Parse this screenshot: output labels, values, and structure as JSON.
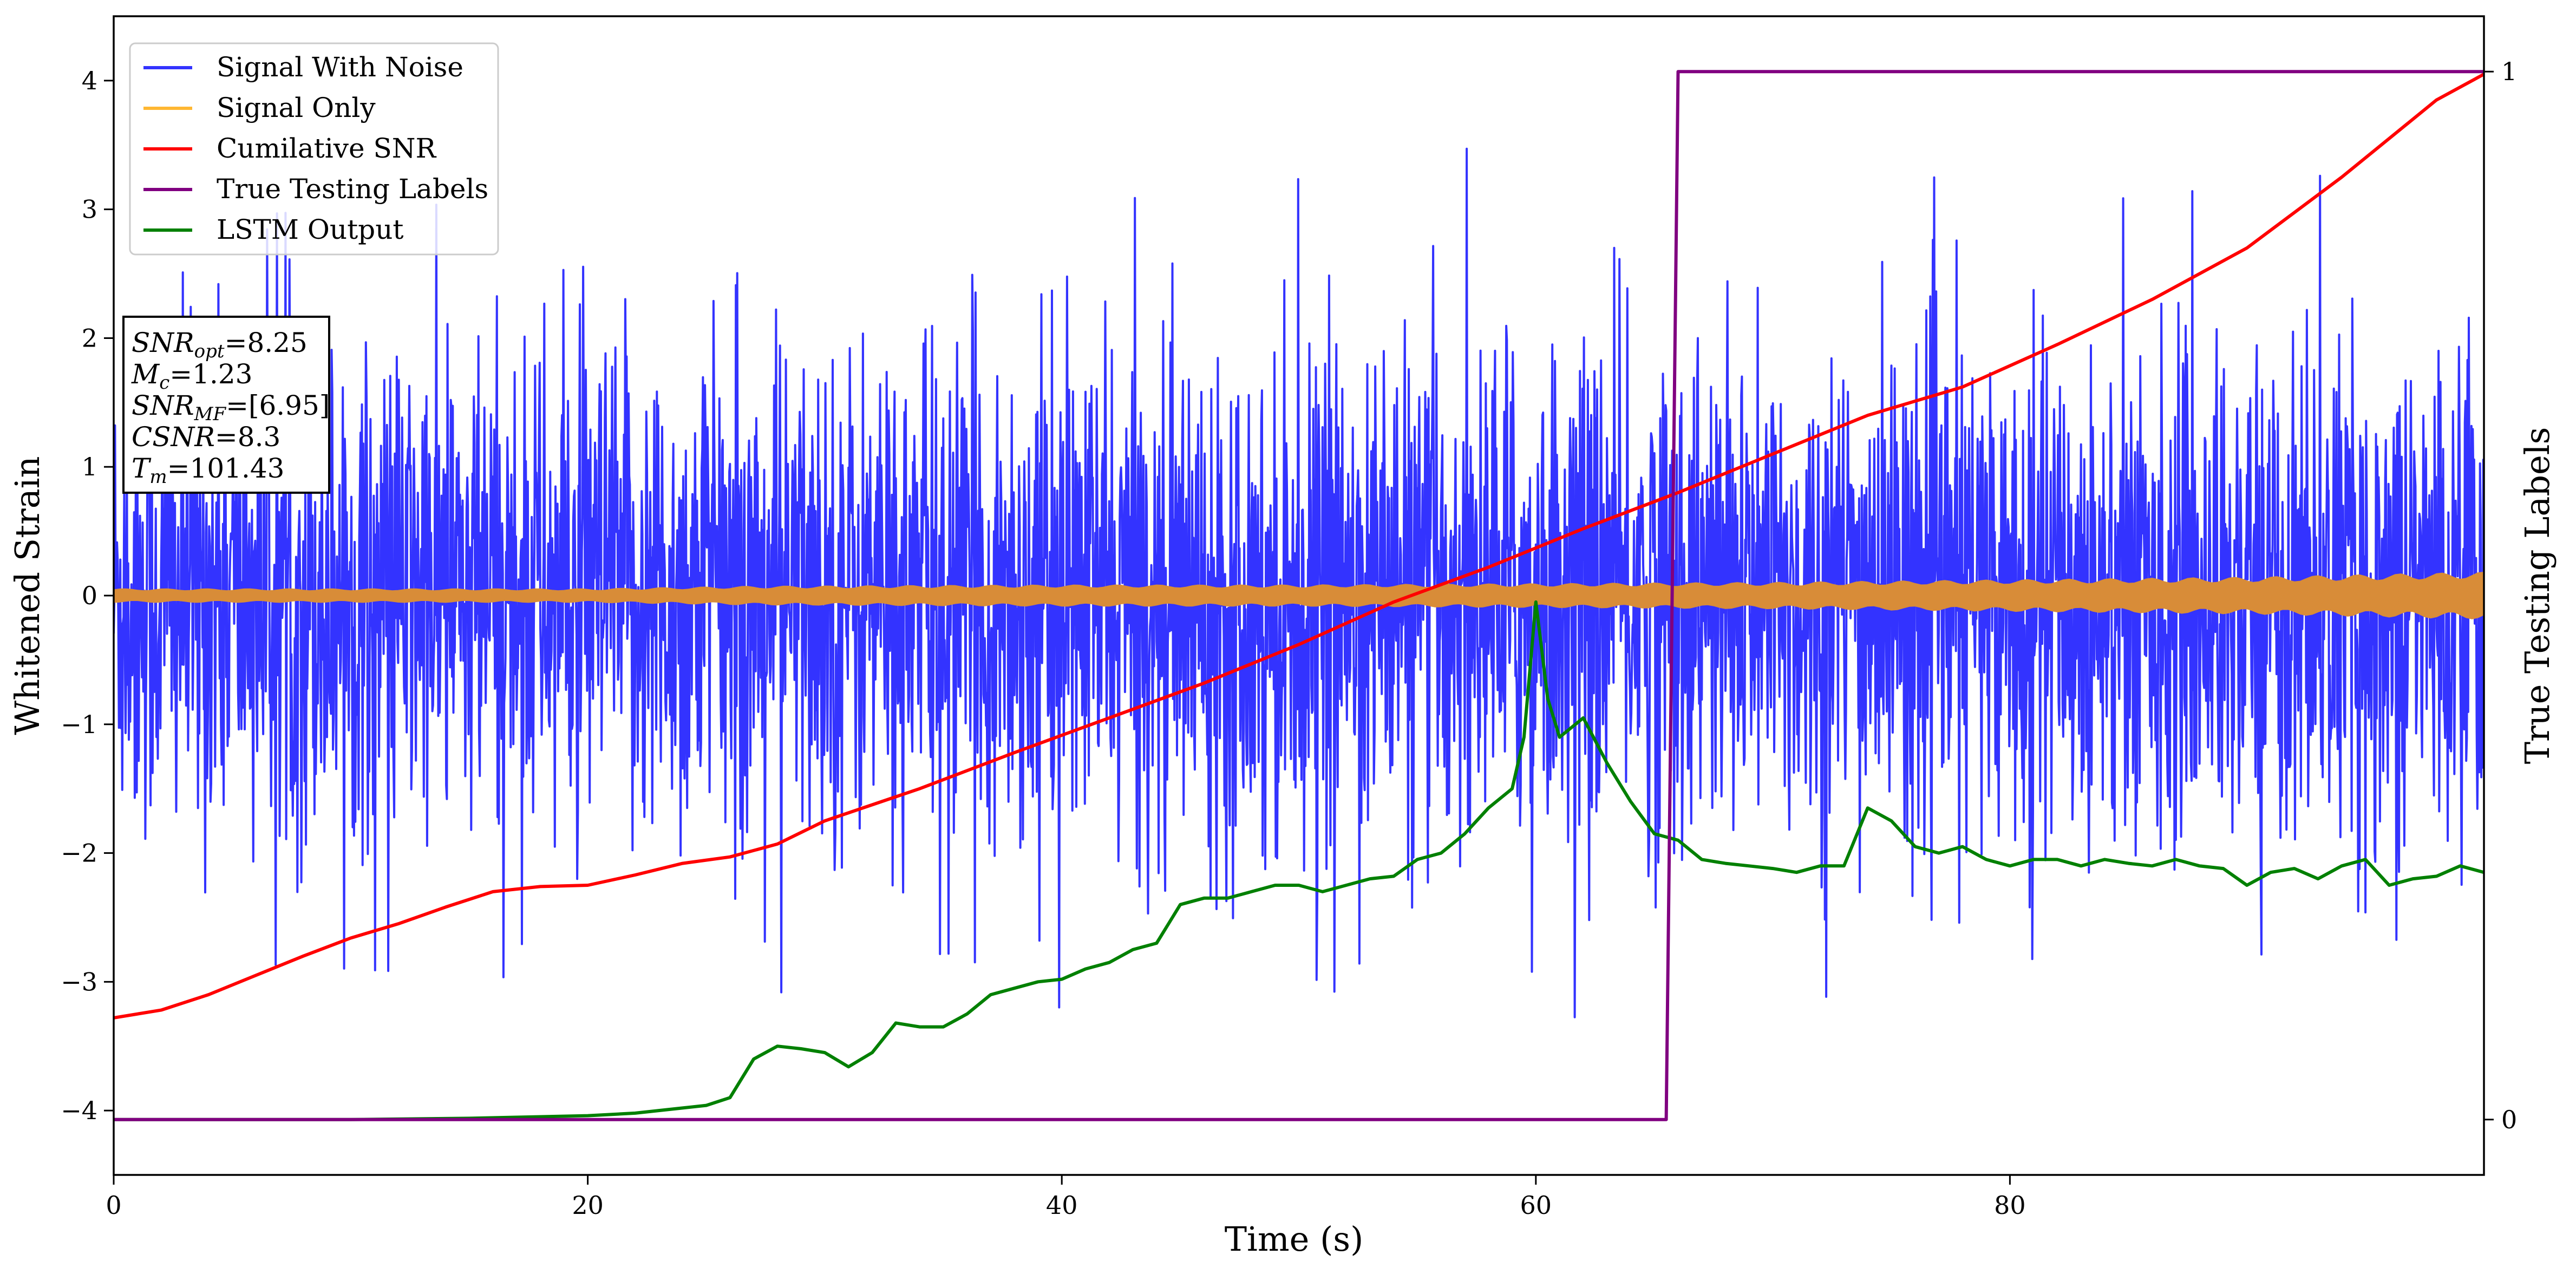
{
  "chart_data": {
    "type": "line",
    "xlabel": "Time (s)",
    "ylabel": "Whitened Strain",
    "y2label": "True Testing Labels",
    "xlim": [
      0,
      100
    ],
    "ylim": [
      -4.5,
      4.5
    ],
    "y2_ticks": [
      0,
      1
    ],
    "x_ticks": [
      0,
      20,
      40,
      60,
      80
    ],
    "y_ticks": [
      -4,
      -3,
      -2,
      -1,
      0,
      1,
      2,
      3,
      4
    ],
    "grid": false,
    "legend_position": "top-left",
    "colors": {
      "signal_with_noise": "#3333ff",
      "signal_only": "#ffb732",
      "signal_only_fill": "#d88c38",
      "cumulative_snr": "#ff0000",
      "labels": "#800080",
      "lstm": "#008000"
    },
    "series": [
      {
        "name": "Signal With Noise",
        "kind": "noise",
        "envelope": {
          "x": [
            0,
            20,
            40,
            60,
            80,
            100
          ],
          "upper": [
            2.9,
            3.1,
            3.3,
            3.5,
            3.2,
            3.5
          ],
          "lower": [
            -2.8,
            -3.0,
            -3.2,
            -3.3,
            -3.0,
            -2.6
          ]
        }
      },
      {
        "name": "Signal Only",
        "kind": "band",
        "x": [
          0,
          10,
          20,
          27,
          40,
          50,
          60,
          70,
          80,
          90,
          100
        ],
        "amp": [
          0.05,
          0.05,
          0.05,
          0.07,
          0.08,
          0.08,
          0.09,
          0.1,
          0.12,
          0.14,
          0.18
        ]
      },
      {
        "name": "Cumilative SNR",
        "kind": "line",
        "x": [
          0,
          2,
          4,
          6,
          8,
          10,
          12,
          14,
          16,
          18,
          20,
          22,
          24,
          26,
          28,
          30,
          34,
          38,
          42,
          46,
          50,
          54,
          58,
          62,
          66,
          70,
          74,
          78,
          82,
          86,
          90,
          94,
          98,
          100
        ],
        "y": [
          -3.28,
          -3.22,
          -3.1,
          -2.95,
          -2.8,
          -2.66,
          -2.55,
          -2.42,
          -2.3,
          -2.26,
          -2.25,
          -2.17,
          -2.08,
          -2.03,
          -1.93,
          -1.75,
          -1.5,
          -1.22,
          -0.95,
          -0.68,
          -0.38,
          -0.05,
          0.22,
          0.52,
          0.8,
          1.1,
          1.4,
          1.62,
          1.95,
          2.3,
          2.7,
          3.25,
          3.85,
          4.05
        ]
      },
      {
        "name": "True Testing Labels",
        "kind": "step",
        "axis": "y2",
        "x": [
          0,
          65.5,
          66.0,
          100
        ],
        "y": [
          0,
          0,
          1,
          1
        ]
      },
      {
        "name": "LSTM Output",
        "kind": "line",
        "x": [
          0,
          10,
          15,
          20,
          22,
          24,
          25,
          26,
          27,
          28,
          29,
          30,
          31,
          32,
          33,
          34,
          35,
          36,
          37,
          38,
          39,
          40,
          41,
          42,
          43,
          44,
          45,
          46,
          47,
          48,
          49,
          50,
          51,
          52,
          53,
          54,
          55,
          56,
          57,
          58,
          59,
          59.5,
          60,
          60.5,
          61,
          62,
          63,
          64,
          65,
          66,
          67,
          68,
          69,
          70,
          71,
          72,
          73,
          74,
          75,
          76,
          77,
          78,
          79,
          80,
          81,
          82,
          83,
          84,
          85,
          86,
          87,
          88,
          89,
          90,
          91,
          92,
          93,
          94,
          95,
          96,
          97,
          98,
          99,
          100
        ],
        "y": [
          -4.07,
          -4.07,
          -4.06,
          -4.04,
          -4.02,
          -3.98,
          -3.96,
          -3.9,
          -3.6,
          -3.5,
          -3.52,
          -3.55,
          -3.66,
          -3.55,
          -3.32,
          -3.35,
          -3.35,
          -3.25,
          -3.1,
          -3.05,
          -3.0,
          -2.98,
          -2.9,
          -2.85,
          -2.75,
          -2.7,
          -2.4,
          -2.35,
          -2.35,
          -2.3,
          -2.25,
          -2.25,
          -2.3,
          -2.25,
          -2.2,
          -2.18,
          -2.05,
          -2.0,
          -1.85,
          -1.65,
          -1.5,
          -1.1,
          -0.05,
          -0.8,
          -1.1,
          -0.95,
          -1.3,
          -1.6,
          -1.85,
          -1.9,
          -2.05,
          -2.08,
          -2.1,
          -2.12,
          -2.15,
          -2.1,
          -2.1,
          -1.65,
          -1.75,
          -1.95,
          -2.0,
          -1.95,
          -2.05,
          -2.1,
          -2.05,
          -2.05,
          -2.1,
          -2.05,
          -2.08,
          -2.1,
          -2.05,
          -2.1,
          -2.12,
          -2.25,
          -2.15,
          -2.12,
          -2.2,
          -2.1,
          -2.05,
          -2.25,
          -2.2,
          -2.18,
          -2.1,
          -2.15
        ]
      }
    ],
    "annotation_lines": [
      {
        "name": "SNR",
        "sub": "opt",
        "value": "=8.25"
      },
      {
        "name": "M",
        "sub": "c",
        "value": "=1.23"
      },
      {
        "name": "SNR",
        "sub": "MF",
        "value": "=[6.95]"
      },
      {
        "name": "CSNR",
        "sub": "",
        "value": "=8.3"
      },
      {
        "name": "T",
        "sub": "m",
        "value": "=101.43"
      }
    ]
  }
}
